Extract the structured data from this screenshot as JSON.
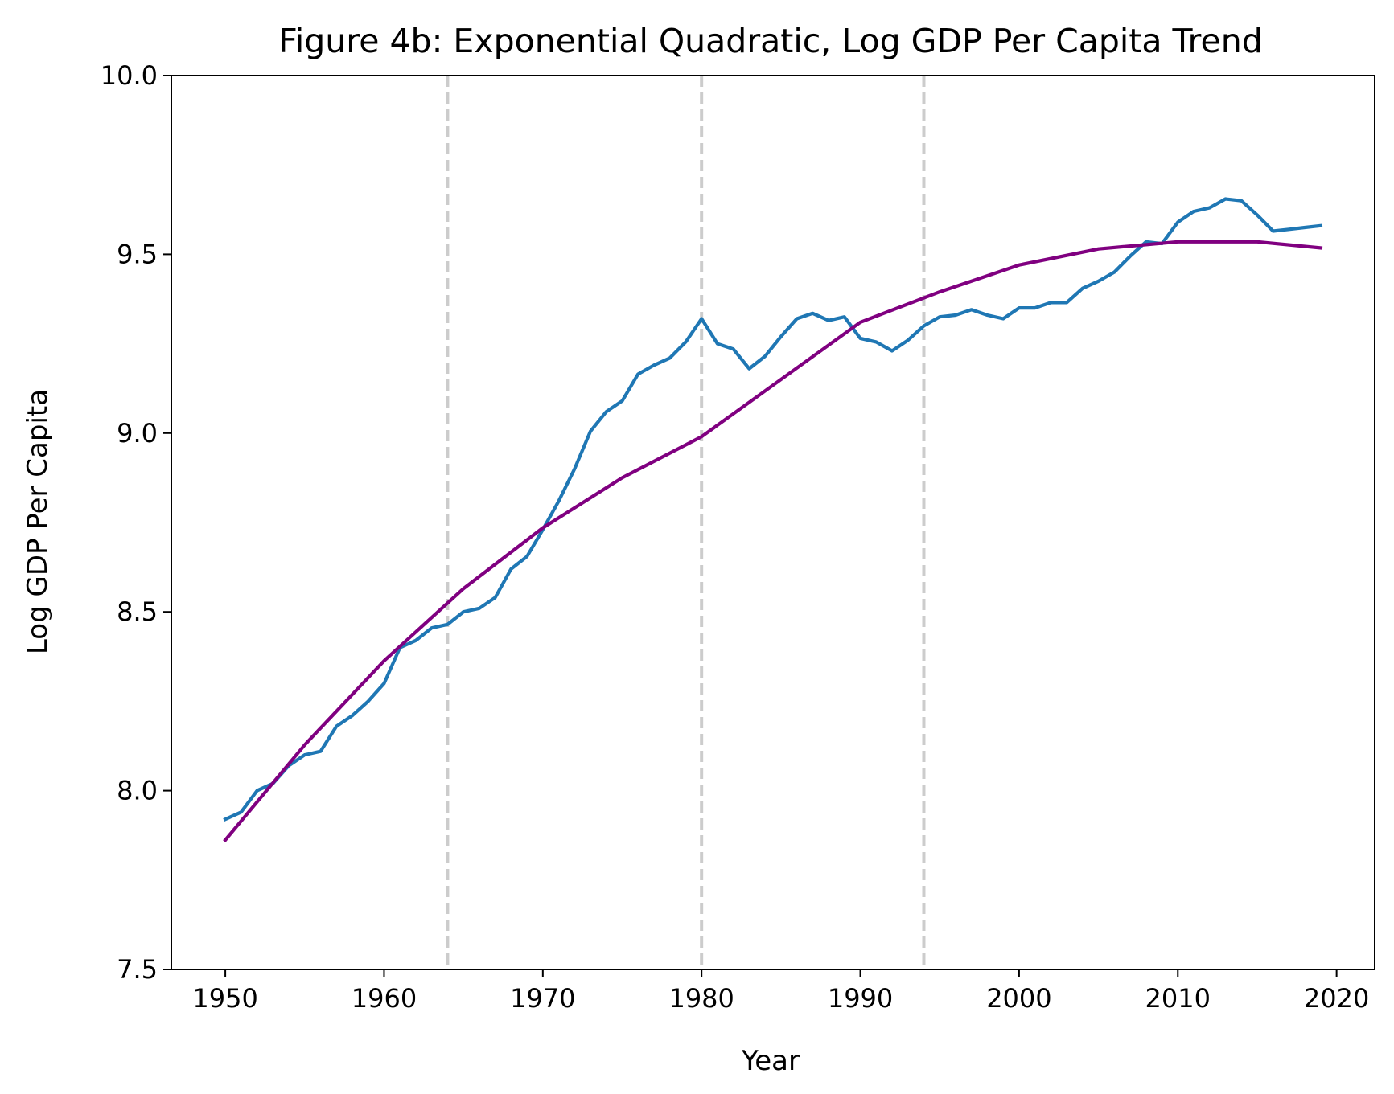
{
  "chart_data": {
    "type": "line",
    "title": "Figure 4b: Exponential Quadratic, Log GDP Per Capita Trend",
    "xlabel": "Year",
    "ylabel": "Log GDP Per Capita",
    "xlim": [
      1946.6,
      2022.4
    ],
    "ylim": [
      7.5,
      10.0
    ],
    "x_ticks": [
      1950,
      1960,
      1970,
      1980,
      1990,
      2000,
      2010,
      2020
    ],
    "x_tick_labels": [
      "1950",
      "1960",
      "1970",
      "1980",
      "1990",
      "2000",
      "2010",
      "2020"
    ],
    "y_ticks": [
      7.5,
      8.0,
      8.5,
      9.0,
      9.5,
      10.0
    ],
    "y_tick_labels": [
      "7.5",
      "8.0",
      "8.5",
      "9.0",
      "9.5",
      "10.0"
    ],
    "grid": false,
    "vertical_lines": [
      1964,
      1980,
      1994
    ],
    "vertical_line_color": "#cccccc",
    "series": [
      {
        "color": "#1f77b4",
        "x": [
          1950,
          1951,
          1952,
          1953,
          1954,
          1955,
          1956,
          1957,
          1958,
          1959,
          1960,
          1961,
          1962,
          1963,
          1964,
          1965,
          1966,
          1967,
          1968,
          1969,
          1970,
          1971,
          1972,
          1973,
          1974,
          1975,
          1976,
          1977,
          1978,
          1979,
          1980,
          1981,
          1982,
          1983,
          1984,
          1985,
          1986,
          1987,
          1988,
          1989,
          1990,
          1991,
          1992,
          1993,
          1994,
          1995,
          1996,
          1997,
          1998,
          1999,
          2000,
          2001,
          2002,
          2003,
          2004,
          2005,
          2006,
          2007,
          2008,
          2009,
          2010,
          2011,
          2012,
          2013,
          2014,
          2015,
          2016,
          2017,
          2018,
          2019
        ],
        "values": [
          7.92,
          7.94,
          8.0,
          8.02,
          8.07,
          8.1,
          8.11,
          8.18,
          8.21,
          8.25,
          8.3,
          8.4,
          8.42,
          8.455,
          8.465,
          8.5,
          8.51,
          8.54,
          8.62,
          8.655,
          8.73,
          8.81,
          8.9,
          9.005,
          9.06,
          9.09,
          9.165,
          9.19,
          9.21,
          9.255,
          9.32,
          9.25,
          9.235,
          9.18,
          9.215,
          9.27,
          9.32,
          9.335,
          9.315,
          9.325,
          9.265,
          9.255,
          9.23,
          9.26,
          9.3,
          9.325,
          9.33,
          9.345,
          9.33,
          9.32,
          9.35,
          9.35,
          9.365,
          9.365,
          9.405,
          9.425,
          9.45,
          9.495,
          9.535,
          9.53,
          9.59,
          9.62,
          9.63,
          9.655,
          9.65,
          9.61,
          9.565,
          9.57,
          9.575,
          9.58
        ]
      },
      {
        "color": "#800080",
        "x": [
          1950,
          1955,
          1960,
          1965,
          1970,
          1975,
          1980,
          1985,
          1990,
          1995,
          2000,
          2005,
          2010,
          2015,
          2019
        ],
        "values": [
          7.862,
          8.128,
          8.363,
          8.565,
          8.735,
          8.875,
          8.99,
          9.15,
          9.31,
          9.395,
          9.47,
          9.515,
          9.535,
          9.535,
          9.518
        ]
      }
    ]
  }
}
